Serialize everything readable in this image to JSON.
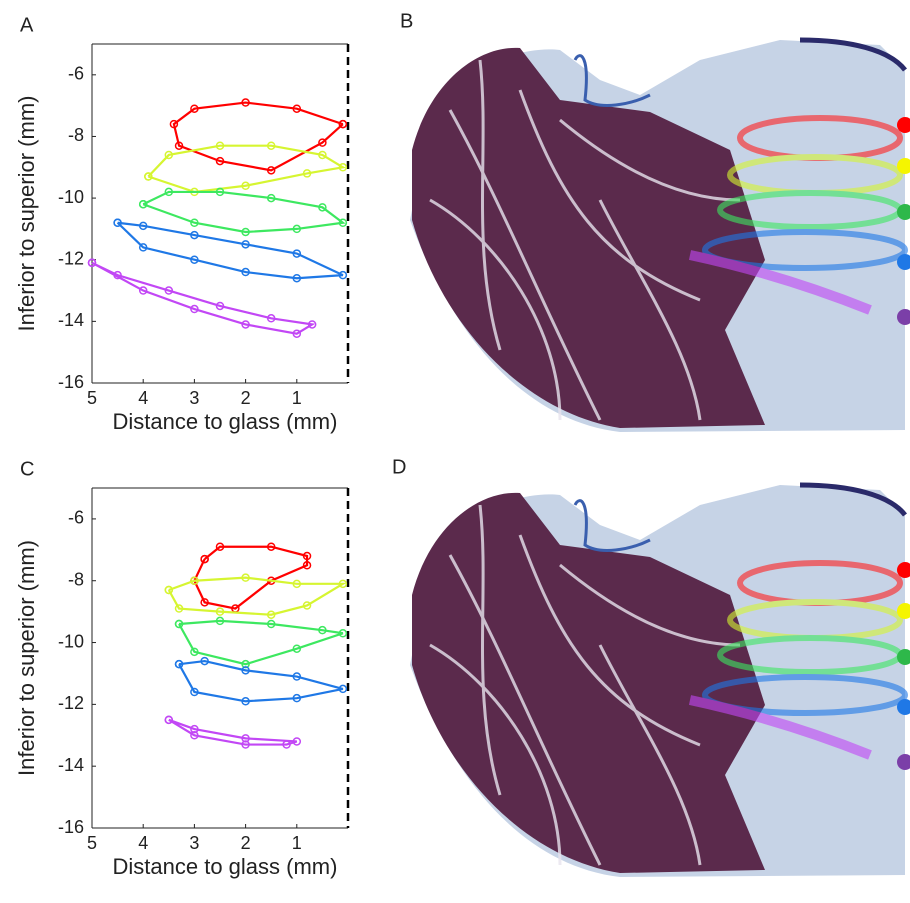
{
  "chart_data": [
    {
      "type": "line",
      "label": "A",
      "x_label": "Distance to glass (mm)",
      "y_label": "Inferior to superior (mm)",
      "xlim": [
        5,
        0
      ],
      "ylim": [
        -16,
        -5
      ],
      "xticks": [
        5,
        4,
        3,
        2,
        1
      ],
      "yticks": [
        -16,
        -14,
        -12,
        -10,
        -8,
        -6
      ],
      "vline": 0,
      "series": [
        {
          "color": "#ff0000",
          "x": [
            0.1,
            1,
            2,
            3,
            3.4,
            3.3,
            2.5,
            1.5,
            0.5,
            0.1
          ],
          "values": [
            -7.6,
            -7.1,
            -6.9,
            -7.1,
            -7.6,
            -8.3,
            -8.8,
            -9.1,
            -8.2,
            -7.6
          ]
        },
        {
          "color": "#d6f531",
          "x": [
            3.9,
            3.5,
            2.5,
            1.5,
            0.5,
            0.1,
            0.8,
            2,
            3,
            3.9
          ],
          "values": [
            -9.3,
            -8.6,
            -8.3,
            -8.3,
            -8.6,
            -9.0,
            -9.2,
            -9.6,
            -9.8,
            -9.3
          ]
        },
        {
          "color": "#3de860",
          "x": [
            4.0,
            3.5,
            2.5,
            1.5,
            0.5,
            0.1,
            1,
            2,
            3,
            4.0
          ],
          "values": [
            -10.2,
            -9.8,
            -9.8,
            -10.0,
            -10.3,
            -10.8,
            -11.0,
            -11.1,
            -10.8,
            -10.2
          ]
        },
        {
          "color": "#1f78e6",
          "x": [
            4.5,
            4,
            3,
            2,
            1,
            0.1,
            1,
            2,
            3,
            4,
            4.5
          ],
          "values": [
            -10.8,
            -10.9,
            -11.2,
            -11.5,
            -11.8,
            -12.5,
            -12.6,
            -12.4,
            -12.0,
            -11.6,
            -10.8
          ]
        },
        {
          "color": "#c247f5",
          "x": [
            5,
            4.5,
            3.5,
            2.5,
            1.5,
            0.7,
            1,
            2,
            3,
            4,
            5
          ],
          "values": [
            -12.1,
            -12.5,
            -13.0,
            -13.5,
            -13.9,
            -14.1,
            -14.4,
            -14.1,
            -13.6,
            -13.0,
            -12.1
          ]
        }
      ]
    },
    {
      "type": "line",
      "label": "C",
      "x_label": "Distance to glass (mm)",
      "y_label": "Inferior to superior (mm)",
      "xlim": [
        5,
        0
      ],
      "ylim": [
        -16,
        -5
      ],
      "xticks": [
        5,
        4,
        3,
        2,
        1
      ],
      "yticks": [
        -16,
        -14,
        -12,
        -10,
        -8,
        -6
      ],
      "vline": 0,
      "series": [
        {
          "color": "#ff0000",
          "x": [
            2.8,
            2.5,
            1.5,
            0.8,
            0.8,
            1.5,
            2.2,
            2.8,
            3.0,
            2.8
          ],
          "values": [
            -7.3,
            -6.9,
            -6.9,
            -7.2,
            -7.5,
            -8.0,
            -8.9,
            -8.7,
            -8.0,
            -7.3
          ]
        },
        {
          "color": "#d6f531",
          "x": [
            3.5,
            3,
            2,
            1,
            0.1,
            0.8,
            1.5,
            2.5,
            3.3,
            3.5
          ],
          "values": [
            -8.3,
            -8.0,
            -7.9,
            -8.1,
            -8.1,
            -8.8,
            -9.1,
            -9.0,
            -8.9,
            -8.3
          ]
        },
        {
          "color": "#3de860",
          "x": [
            3.3,
            2.5,
            1.5,
            0.5,
            0.1,
            1,
            2,
            3,
            3.3
          ],
          "values": [
            -9.4,
            -9.3,
            -9.4,
            -9.6,
            -9.7,
            -10.2,
            -10.7,
            -10.3,
            -9.4
          ]
        },
        {
          "color": "#1f78e6",
          "x": [
            3.3,
            2.8,
            2,
            1,
            0.1,
            1,
            2,
            3,
            3.3
          ],
          "values": [
            -10.7,
            -10.6,
            -10.9,
            -11.1,
            -11.5,
            -11.8,
            -11.9,
            -11.6,
            -10.7
          ]
        },
        {
          "color": "#c247f5",
          "x": [
            3.5,
            3,
            2,
            1,
            1.2,
            2,
            3,
            3.5
          ],
          "values": [
            -12.5,
            -12.8,
            -13.1,
            -13.2,
            -13.3,
            -13.3,
            -13.0,
            -12.5
          ]
        }
      ]
    }
  ],
  "images": [
    {
      "label": "B"
    },
    {
      "label": "D"
    }
  ]
}
